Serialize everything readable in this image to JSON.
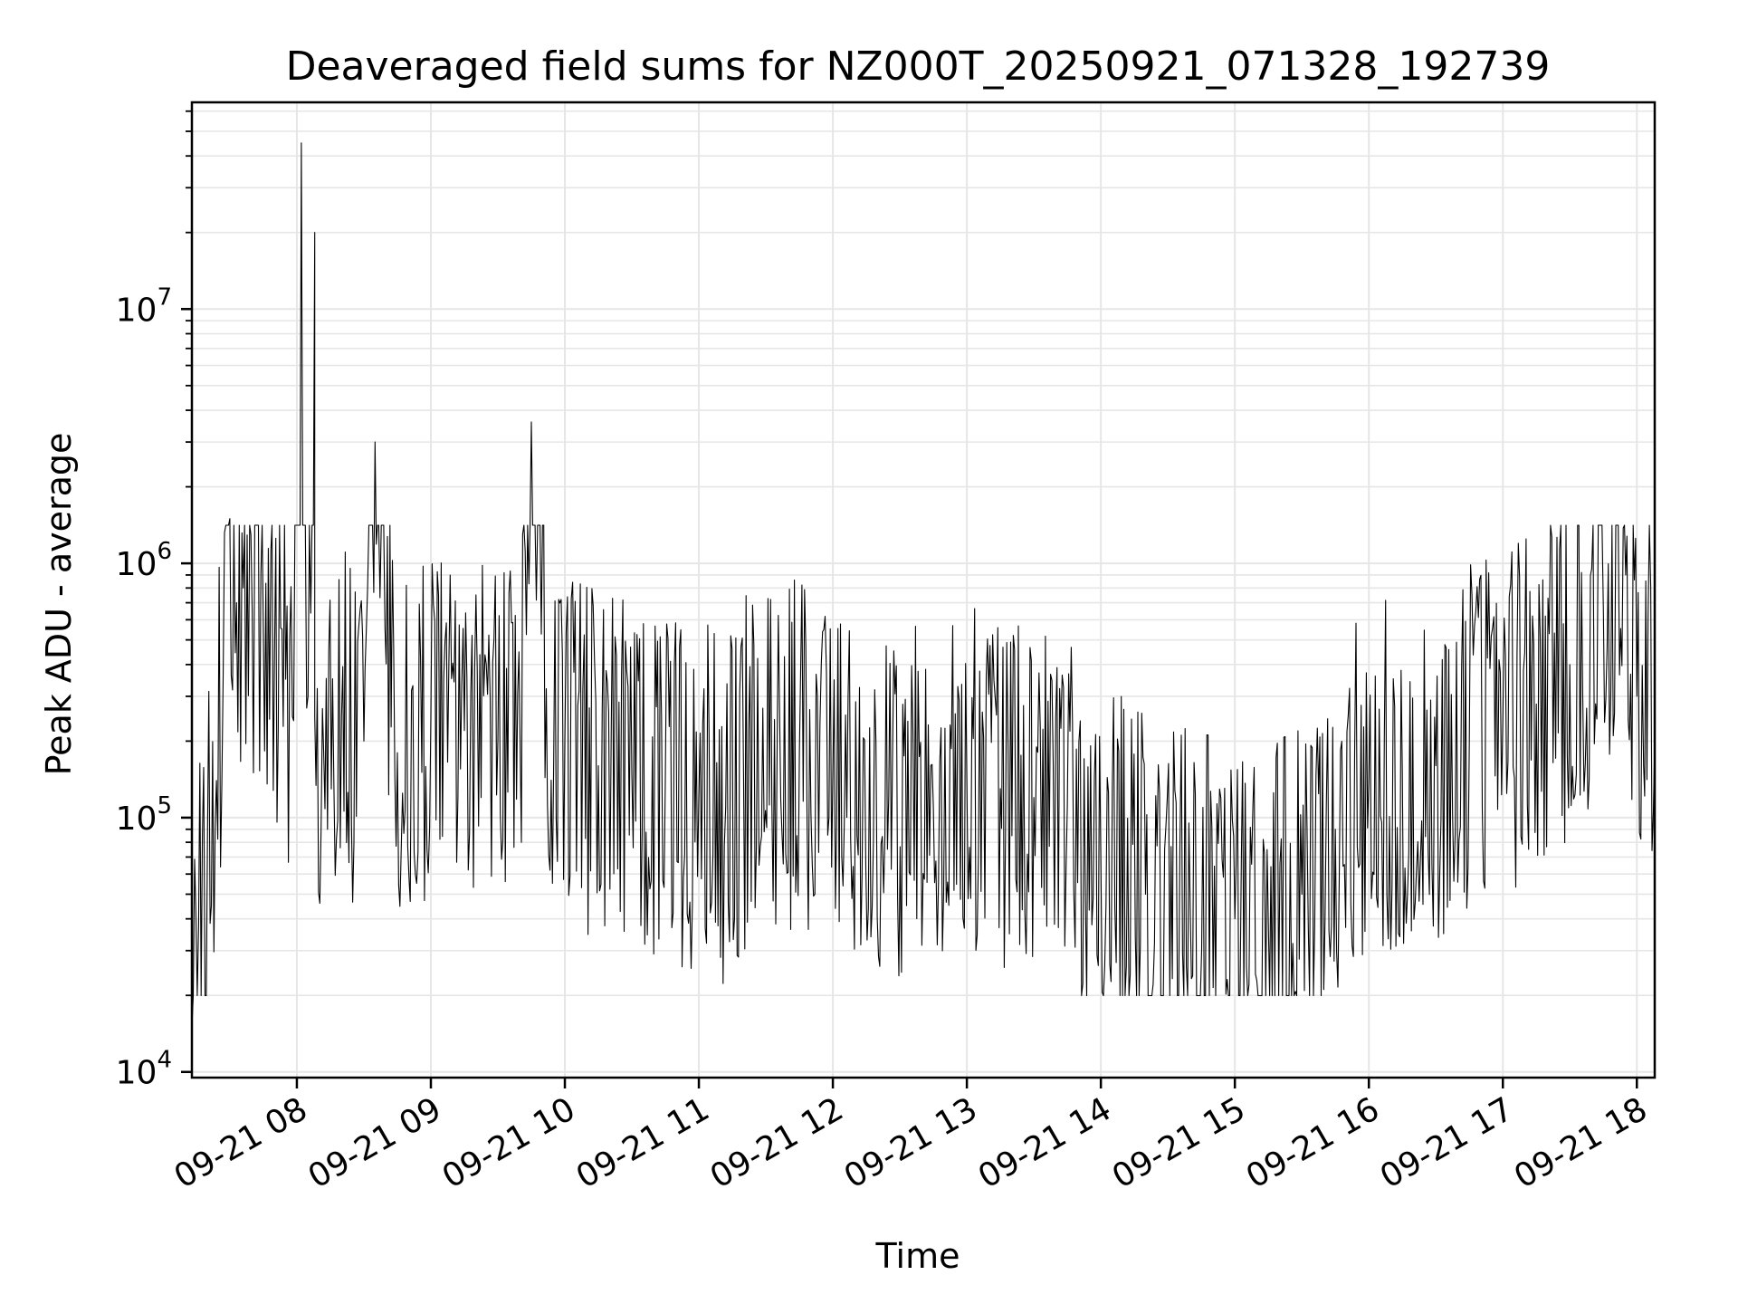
{
  "chart_data": {
    "type": "line",
    "title": "Deaveraged field sums for NZ000T_20250921_071328_192739",
    "xlabel": "Time",
    "ylabel": "Peak ADU - average",
    "yscale": "log",
    "grid": true,
    "line_color": "#000000",
    "grid_color": "#e6e6e6",
    "xlim": [
      "2025-09-21 07:13",
      "2025-09-21 18:08"
    ],
    "ylim": [
      9500,
      65000000
    ],
    "x_ticks": [
      {
        "t": "2025-09-21 08:00",
        "label": "09-21 08"
      },
      {
        "t": "2025-09-21 09:00",
        "label": "09-21 09"
      },
      {
        "t": "2025-09-21 10:00",
        "label": "09-21 10"
      },
      {
        "t": "2025-09-21 11:00",
        "label": "09-21 11"
      },
      {
        "t": "2025-09-21 12:00",
        "label": "09-21 12"
      },
      {
        "t": "2025-09-21 13:00",
        "label": "09-21 13"
      },
      {
        "t": "2025-09-21 14:00",
        "label": "09-21 14"
      },
      {
        "t": "2025-09-21 15:00",
        "label": "09-21 15"
      },
      {
        "t": "2025-09-21 16:00",
        "label": "09-21 16"
      },
      {
        "t": "2025-09-21 17:00",
        "label": "09-21 17"
      },
      {
        "t": "2025-09-21 18:00",
        "label": "09-21 18"
      }
    ],
    "y_ticks": [
      {
        "v": 10000,
        "base": "10",
        "exp": "4"
      },
      {
        "v": 100000,
        "base": "10",
        "exp": "5"
      },
      {
        "v": 1000000,
        "base": "10",
        "exp": "6"
      },
      {
        "v": 10000000,
        "base": "10",
        "exp": "7"
      }
    ],
    "series": [
      {
        "x": [
          "2025-09-21 07:13",
          "2025-09-21 07:16",
          "2025-09-21 07:20",
          "2025-09-21 07:24",
          "2025-09-21 07:27",
          "2025-09-21 07:30",
          "2025-09-21 07:33",
          "2025-09-21 07:36",
          "2025-09-21 07:40",
          "2025-09-21 07:45",
          "2025-09-21 07:50",
          "2025-09-21 07:55",
          "2025-09-21 07:58",
          "2025-09-21 08:02",
          "2025-09-21 08:05",
          "2025-09-21 08:08",
          "2025-09-21 08:08",
          "2025-09-21 08:12",
          "2025-09-21 08:20",
          "2025-09-21 08:30",
          "2025-09-21 08:35",
          "2025-09-21 08:45",
          "2025-09-21 09:00",
          "2025-09-21 09:15",
          "2025-09-21 09:30",
          "2025-09-21 09:40",
          "2025-09-21 09:45",
          "2025-09-21 09:55",
          "2025-09-21 10:00",
          "2025-09-21 10:15",
          "2025-09-21 10:30",
          "2025-09-21 10:45",
          "2025-09-21 11:00",
          "2025-09-21 11:12",
          "2025-09-21 11:20",
          "2025-09-21 11:35",
          "2025-09-21 11:45",
          "2025-09-21 12:00",
          "2025-09-21 12:25",
          "2025-09-21 12:45",
          "2025-09-21 13:00",
          "2025-09-21 13:15",
          "2025-09-21 13:30",
          "2025-09-21 13:45",
          "2025-09-21 14:00",
          "2025-09-21 14:20",
          "2025-09-21 14:40",
          "2025-09-21 15:00",
          "2025-09-21 15:15",
          "2025-09-21 15:30",
          "2025-09-21 15:45",
          "2025-09-21 16:00",
          "2025-09-21 16:15",
          "2025-09-21 16:30",
          "2025-09-21 16:45",
          "2025-09-21 17:00",
          "2025-09-21 17:15",
          "2025-09-21 17:30",
          "2025-09-21 17:45",
          "2025-09-21 17:55",
          "2025-09-21 18:00",
          "2025-09-21 18:03",
          "2025-09-21 18:05",
          "2025-09-21 18:08"
        ],
        "y": [
          15000,
          38000,
          90000,
          140000,
          350000,
          1500000,
          700000,
          800000,
          650000,
          550000,
          450000,
          350000,
          250000,
          45000000,
          300000,
          20000000,
          250000,
          180000,
          250000,
          200000,
          3000000,
          180000,
          250000,
          220000,
          200000,
          180000,
          3600000,
          170000,
          200000,
          160000,
          150000,
          140000,
          120000,
          110000,
          150000,
          170000,
          180000,
          150000,
          120000,
          110000,
          140000,
          130000,
          120000,
          110000,
          70000,
          50000,
          45000,
          40000,
          38000,
          50000,
          90000,
          140000,
          150000,
          160000,
          200000,
          240000,
          280000,
          400000,
          650000,
          900000,
          300000,
          160000,
          600000,
          200000
        ]
      }
    ]
  }
}
